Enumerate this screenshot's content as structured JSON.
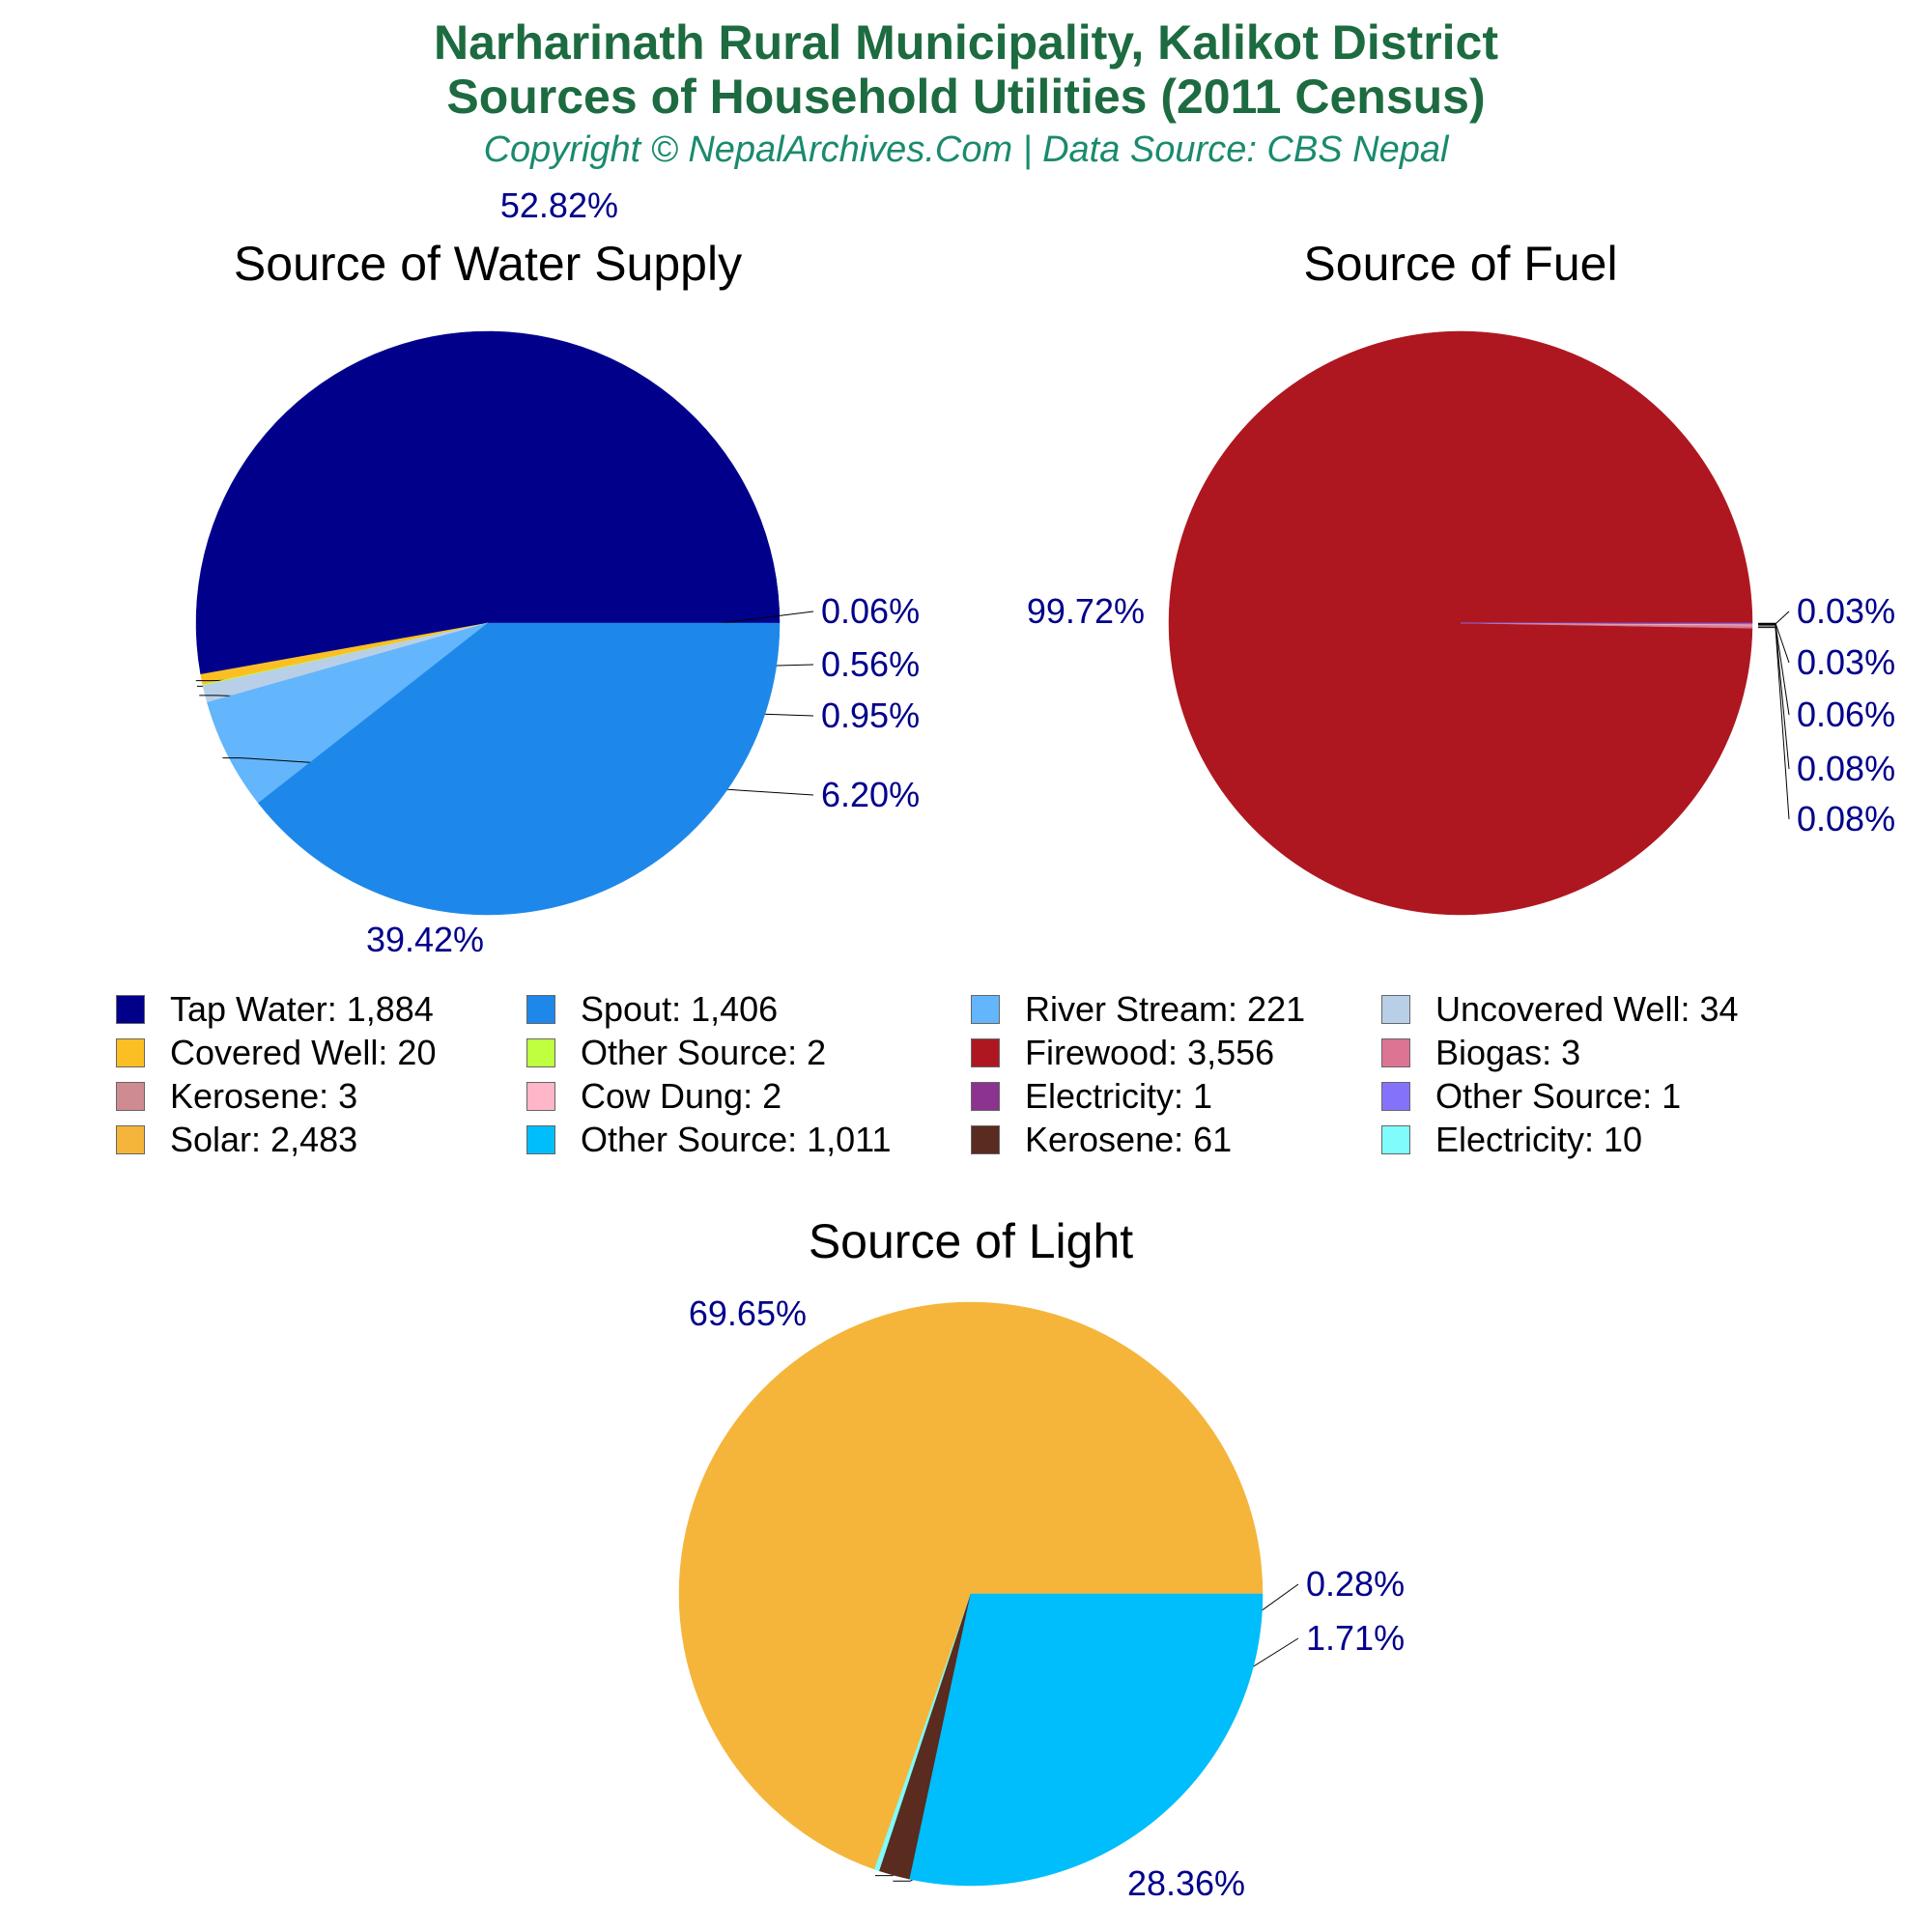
{
  "header": {
    "title_line1": "Narharinath Rural Municipality, Kalikot District",
    "title_line2": "Sources of Household Utilities (2011 Census)",
    "copyright": "Copyright © NepalArchives.Com | Data Source: CBS Nepal"
  },
  "chart_data": [
    {
      "type": "pie",
      "title": "Source of Water Supply",
      "slices": [
        {
          "label": "Tap Water",
          "value": 1884,
          "percent_label": "52.82%",
          "color": "#00008b"
        },
        {
          "label": "Covered Well",
          "value": 20,
          "percent_label": "0.56%",
          "color": "#fbbf24"
        },
        {
          "label": "Other Source",
          "value": 2,
          "percent_label": "0.06%",
          "color": "#bfff3f"
        },
        {
          "label": "Uncovered Well",
          "value": 34,
          "percent_label": "0.95%",
          "color": "#b9cfe8"
        },
        {
          "label": "River Stream",
          "value": 221,
          "percent_label": "6.20%",
          "color": "#63b6fb"
        },
        {
          "label": "Spout",
          "value": 1406,
          "percent_label": "39.42%",
          "color": "#1e88ea"
        }
      ]
    },
    {
      "type": "pie",
      "title": "Source of Fuel",
      "slices": [
        {
          "label": "Firewood",
          "value": 3556,
          "percent_label": "99.72%",
          "color": "#ae1720"
        },
        {
          "label": "Biogas",
          "value": 3,
          "percent_label": "0.08%",
          "color": "#dc7493"
        },
        {
          "label": "Kerosene",
          "value": 3,
          "percent_label": "0.08%",
          "color": "#cf8b92"
        },
        {
          "label": "Cow Dung",
          "value": 2,
          "percent_label": "0.06%",
          "color": "#ffb6c8"
        },
        {
          "label": "Electricity",
          "value": 1,
          "percent_label": "0.03%",
          "color": "#8b338e"
        },
        {
          "label": "Other Source",
          "value": 1,
          "percent_label": "0.03%",
          "color": "#8473fa"
        }
      ]
    },
    {
      "type": "pie",
      "title": "Source of Light",
      "slices": [
        {
          "label": "Solar",
          "value": 2483,
          "percent_label": "69.65%",
          "color": "#f5b53a"
        },
        {
          "label": "Electricity",
          "value": 10,
          "percent_label": "0.28%",
          "color": "#7ffcfb"
        },
        {
          "label": "Kerosene",
          "value": 61,
          "percent_label": "1.71%",
          "color": "#5a2b1f"
        },
        {
          "label": "Other Source",
          "value": 1011,
          "percent_label": "28.36%",
          "color": "#00bdfc"
        }
      ]
    }
  ],
  "legend": {
    "rows": [
      [
        {
          "text": "Tap Water: 1,884",
          "color": "#00008b"
        },
        {
          "text": "Spout: 1,406",
          "color": "#1e88ea"
        },
        {
          "text": "River Stream: 221",
          "color": "#63b6fb"
        },
        {
          "text": "Uncovered Well: 34",
          "color": "#b9cfe8"
        }
      ],
      [
        {
          "text": "Covered Well: 20",
          "color": "#fbbf24"
        },
        {
          "text": "Other Source: 2",
          "color": "#bfff3f"
        },
        {
          "text": "Firewood: 3,556",
          "color": "#ae1720"
        },
        {
          "text": "Biogas: 3",
          "color": "#dc7493"
        }
      ],
      [
        {
          "text": "Kerosene: 3",
          "color": "#cf8b92"
        },
        {
          "text": "Cow Dung: 2",
          "color": "#ffb6c8"
        },
        {
          "text": "Electricity: 1",
          "color": "#8b338e"
        },
        {
          "text": "Other Source: 1",
          "color": "#8473fa"
        }
      ],
      [
        {
          "text": "Solar: 2,483",
          "color": "#f5b53a"
        },
        {
          "text": "Other Source: 1,011",
          "color": "#00bdfc"
        },
        {
          "text": "Kerosene: 61",
          "color": "#5a2b1f"
        },
        {
          "text": "Electricity: 10",
          "color": "#7ffcfb"
        }
      ]
    ]
  },
  "colors": {
    "title": "#1d6b40",
    "copyright": "#1a8a6e",
    "percent_labels": "#00008b"
  }
}
